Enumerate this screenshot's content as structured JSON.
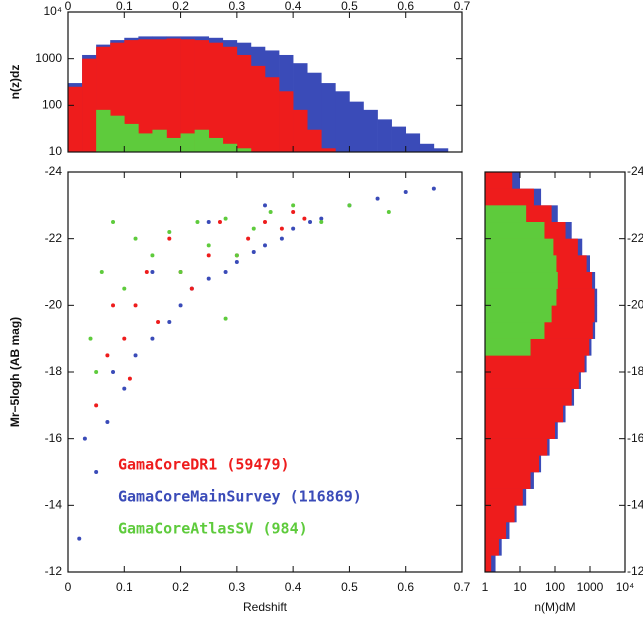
{
  "chart_data": [
    {
      "type": "histogram",
      "ylabel": "n(z)dz",
      "yscale": "log",
      "xlim": [
        0,
        0.7
      ],
      "xticks": [
        0,
        0.1,
        0.2,
        0.3,
        0.4,
        0.5,
        0.6,
        0.7
      ],
      "ylim": [
        10,
        10000
      ],
      "yticks": [
        10,
        100,
        1000,
        {
          "value": 10000,
          "label": "10⁴"
        }
      ],
      "bins": [
        0,
        0.025,
        0.05,
        0.075,
        0.1,
        0.125,
        0.15,
        0.175,
        0.2,
        0.225,
        0.25,
        0.275,
        0.3,
        0.325,
        0.35,
        0.375,
        0.4,
        0.425,
        0.45,
        0.475,
        0.5,
        0.525,
        0.55,
        0.575,
        0.6,
        0.625,
        0.65,
        0.675,
        0.7
      ],
      "series": [
        {
          "color": "#3a4bb8",
          "values": [
            300,
            1200,
            2000,
            2500,
            2800,
            3000,
            3000,
            3000,
            3000,
            3000,
            2800,
            2500,
            2200,
            1800,
            1500,
            1200,
            800,
            500,
            300,
            200,
            120,
            80,
            50,
            35,
            25,
            15,
            12,
            10
          ]
        },
        {
          "color": "#ee1c1c",
          "values": [
            250,
            1000,
            1800,
            2200,
            2500,
            2600,
            2600,
            2700,
            2600,
            2500,
            2200,
            1800,
            1200,
            700,
            400,
            200,
            80,
            30,
            12,
            10,
            10,
            10,
            10,
            10,
            10,
            10,
            10,
            10
          ]
        },
        {
          "color": "#5ecb3c",
          "values": [
            10,
            10,
            80,
            60,
            40,
            25,
            30,
            20,
            25,
            30,
            20,
            15,
            12,
            10,
            10,
            10,
            10,
            10,
            10,
            10,
            10,
            10,
            10,
            10,
            10,
            10,
            10,
            10
          ]
        }
      ]
    },
    {
      "type": "scatter",
      "xlabel": "Redshift",
      "ylabel": "Mr−5logh (AB mag)",
      "xlim": [
        0,
        0.7
      ],
      "xticks": [
        0,
        0.1,
        0.2,
        0.3,
        0.4,
        0.5,
        0.6,
        0.7
      ],
      "ylim": [
        -12,
        -24
      ],
      "yticks": [
        -12,
        -14,
        -16,
        -18,
        -20,
        -22,
        -24
      ],
      "series": [
        {
          "name": "GamaCoreMainSurvey (116869)",
          "color": "#3a4bb8",
          "x": [
            0.05,
            0.07,
            0.1,
            0.12,
            0.15,
            0.18,
            0.2,
            0.22,
            0.25,
            0.28,
            0.3,
            0.33,
            0.35,
            0.38,
            0.4,
            0.43,
            0.45,
            0.5,
            0.55,
            0.6,
            0.65,
            0.08,
            0.15,
            0.25,
            0.35,
            0.02,
            0.03
          ],
          "y": [
            -15,
            -16.5,
            -17.5,
            -18.5,
            -19,
            -19.5,
            -20,
            -20.5,
            -20.8,
            -21,
            -21.3,
            -21.6,
            -21.8,
            -22,
            -22.3,
            -22.5,
            -22.6,
            -23,
            -23.2,
            -23.4,
            -23.5,
            -18,
            -21,
            -22.5,
            -23,
            -13,
            -16
          ]
        },
        {
          "name": "GamaCoreDR1 (59479)",
          "color": "#ee1c1c",
          "x": [
            0.05,
            0.07,
            0.1,
            0.12,
            0.14,
            0.16,
            0.18,
            0.2,
            0.22,
            0.25,
            0.27,
            0.3,
            0.32,
            0.35,
            0.38,
            0.4,
            0.42,
            0.11,
            0.08
          ],
          "y": [
            -17,
            -18.5,
            -19,
            -20,
            -21,
            -19.5,
            -22,
            -21,
            -20.5,
            -21.5,
            -22.5,
            -21.5,
            -22,
            -22.5,
            -22.3,
            -22.8,
            -22.6,
            -17.8,
            -20
          ]
        },
        {
          "name": "GamaCoreAtlasSV (984)",
          "color": "#5ecb3c",
          "x": [
            0.05,
            0.06,
            0.08,
            0.1,
            0.12,
            0.15,
            0.18,
            0.2,
            0.23,
            0.25,
            0.28,
            0.3,
            0.33,
            0.36,
            0.4,
            0.45,
            0.5,
            0.57,
            0.28,
            0.04
          ],
          "y": [
            -18,
            -21,
            -22.5,
            -20.5,
            -22,
            -21.5,
            -22.2,
            -21,
            -22.5,
            -21.8,
            -22.6,
            -21.5,
            -22.3,
            -22.8,
            -23,
            -22.5,
            -23,
            -22.8,
            -19.6,
            -19
          ]
        }
      ]
    },
    {
      "type": "histogram",
      "orientation": "horizontal",
      "xlabel": "n(M)dM",
      "xscale": "log",
      "xlim": [
        1,
        10000
      ],
      "xticks": [
        1,
        10,
        100,
        1000,
        {
          "value": 10000,
          "label": "10⁴"
        }
      ],
      "ylim": [
        -12,
        -24
      ],
      "yticks": [
        -12,
        -14,
        -16,
        -18,
        -20,
        -22,
        -24
      ],
      "bins": [
        -12,
        -12.5,
        -13,
        -13.5,
        -14,
        -14.5,
        -15,
        -15.5,
        -16,
        -16.5,
        -17,
        -17.5,
        -18,
        -18.5,
        -19,
        -19.5,
        -20,
        -20.5,
        -21,
        -21.5,
        -22,
        -22.5,
        -23,
        -23.5,
        -24
      ],
      "series": [
        {
          "color": "#3a4bb8",
          "values": [
            2,
            3,
            5,
            8,
            15,
            25,
            40,
            70,
            120,
            200,
            350,
            550,
            800,
            1100,
            1400,
            1600,
            1600,
            1400,
            1000,
            600,
            300,
            120,
            40,
            10
          ]
        },
        {
          "color": "#ee1c1c",
          "values": [
            1.5,
            2.5,
            4,
            7,
            12,
            20,
            35,
            60,
            100,
            170,
            300,
            480,
            700,
            950,
            1200,
            1350,
            1350,
            1150,
            800,
            450,
            200,
            80,
            25,
            6
          ]
        },
        {
          "color": "#5ecb3c",
          "values": [
            1,
            1,
            1,
            1,
            1,
            1,
            1,
            1,
            1,
            1,
            1,
            1,
            1,
            20,
            50,
            80,
            110,
            120,
            110,
            90,
            50,
            15,
            1,
            1
          ]
        }
      ]
    }
  ]
}
